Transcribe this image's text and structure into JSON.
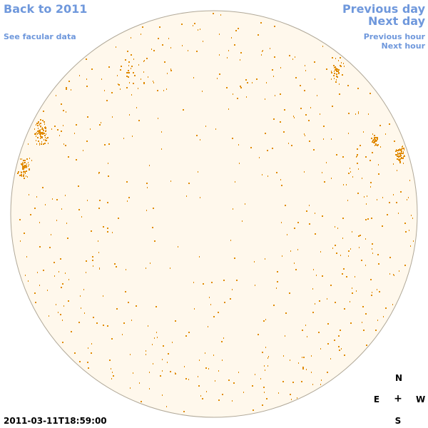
{
  "nav": {
    "back_to_year": "Back to 2011",
    "see_facular": "See facular data",
    "previous_day": "Previous day",
    "next_day": "Next day",
    "previous_hour": "Previous hour",
    "next_hour": "Next hour"
  },
  "compass": {
    "north": "N",
    "east": "E",
    "center": "+",
    "west": "W",
    "south": "S"
  },
  "timestamp": "2011-03-11T18:59:00",
  "colors": {
    "link": "#6f98dc",
    "disk_fill": "#fff8ec",
    "disk_edge": "#b0a898",
    "marks": "#e08a00"
  }
}
